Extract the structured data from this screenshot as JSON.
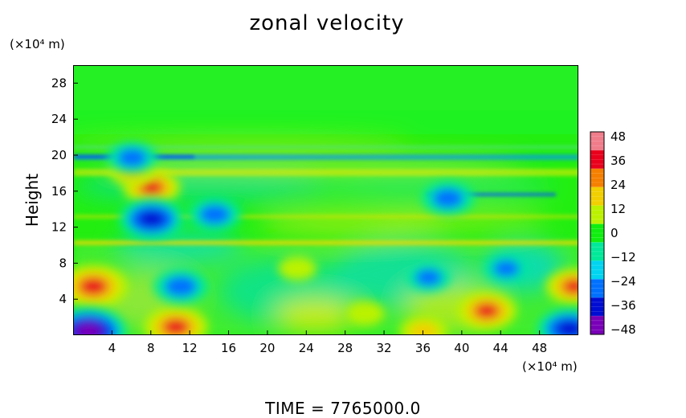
{
  "chart_data": {
    "type": "heatmap",
    "title": "zonal velocity",
    "ylabel": "Height",
    "xlabel": "",
    "y_unit": "(×10⁴ m)",
    "x_unit": "(×10⁴ m)",
    "xlim": [
      0,
      52
    ],
    "ylim": [
      0,
      30
    ],
    "x_ticks": [
      "4",
      "8",
      "12",
      "16",
      "20",
      "24",
      "28",
      "32",
      "36",
      "40",
      "44",
      "48"
    ],
    "y_ticks": [
      "4",
      "8",
      "12",
      "16",
      "20",
      "24",
      "28"
    ],
    "colorbar": {
      "range": [
        -48,
        48
      ],
      "ticks": [
        "48",
        "36",
        "24",
        "12",
        "0",
        "-12",
        "-24",
        "-36",
        "-48"
      ],
      "colors": [
        "#f07c8a",
        "#e9001c",
        "#f57f00",
        "#f1cf00",
        "#bbf200",
        "#10ee10",
        "#00e899",
        "#00d4f0",
        "#0070ff",
        "#000cd2",
        "#7a00b8"
      ]
    },
    "features": [
      {
        "x": 2,
        "y": 5.5,
        "value": 40
      },
      {
        "x": 10.5,
        "y": 1,
        "value": 36
      },
      {
        "x": 42.5,
        "y": 2.8,
        "value": 32
      },
      {
        "x": 51.5,
        "y": 5.5,
        "value": 30
      },
      {
        "x": 8,
        "y": 16.5,
        "value": 30
      },
      {
        "x": 6,
        "y": 18.3,
        "value": 20
      },
      {
        "x": 1.5,
        "y": 0.5,
        "value": -46
      },
      {
        "x": 51,
        "y": 0.8,
        "value": -36
      },
      {
        "x": 8,
        "y": 13,
        "value": -36
      },
      {
        "x": 11,
        "y": 5.5,
        "value": -28
      },
      {
        "x": 14.5,
        "y": 13.5,
        "value": -26
      },
      {
        "x": 38.5,
        "y": 15.3,
        "value": -26
      },
      {
        "x": 36.5,
        "y": 6.5,
        "value": -20
      },
      {
        "x": 44.5,
        "y": 7.5,
        "value": -20
      },
      {
        "x": 6,
        "y": 19.8,
        "value": -24
      },
      {
        "x": 30,
        "y": 2.5,
        "value": 14
      },
      {
        "x": 23,
        "y": 7.5,
        "value": 14
      },
      {
        "x": 36,
        "y": 0.5,
        "value": 22
      }
    ]
  },
  "footer": {
    "time_label": "TIME  =  7765000.0"
  }
}
